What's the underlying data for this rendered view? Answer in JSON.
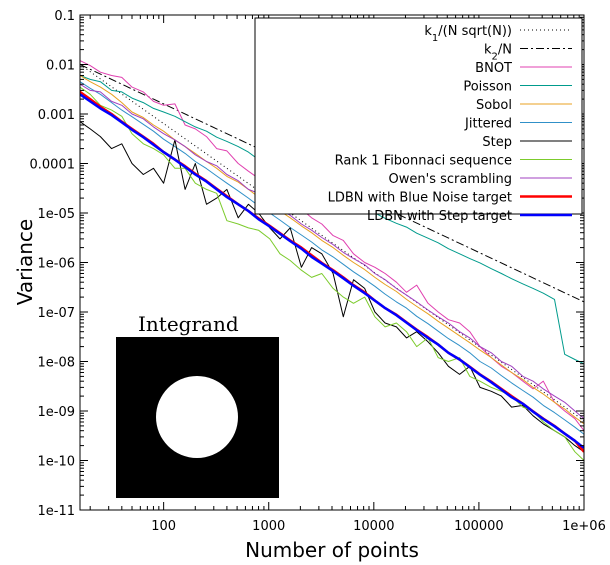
{
  "chart_data": {
    "type": "line",
    "title": "",
    "xlabel": "Number of points",
    "ylabel": "Variance",
    "x_scale": "log",
    "y_scale": "log",
    "xlim": [
      16,
      1000000
    ],
    "ylim": [
      1e-11,
      0.1
    ],
    "x_ticks": [
      {
        "value": 100,
        "label": "100"
      },
      {
        "value": 1000,
        "label": "1000"
      },
      {
        "value": 10000,
        "label": "10000"
      },
      {
        "value": 100000,
        "label": "100000"
      },
      {
        "value": 1000000,
        "label": "1e+06"
      }
    ],
    "y_ticks": [
      {
        "value": 1e-11,
        "label": "1e-11"
      },
      {
        "value": 1e-10,
        "label": "1e-10"
      },
      {
        "value": 1e-09,
        "label": "1e-09"
      },
      {
        "value": 1e-08,
        "label": "1e-08"
      },
      {
        "value": 1e-07,
        "label": "1e-07"
      },
      {
        "value": 1e-06,
        "label": "1e-06"
      },
      {
        "value": 1e-05,
        "label": "1e-05"
      },
      {
        "value": 0.0001,
        "label": "0.0001"
      },
      {
        "value": 0.001,
        "label": "0.001"
      },
      {
        "value": 0.01,
        "label": "0.01"
      },
      {
        "value": 0.1,
        "label": "0.1"
      }
    ],
    "grid": false,
    "legend_position": "top-right",
    "series": [
      {
        "name": "k1/(N sqrt(N))",
        "legend_main": "k",
        "legend_sub": "1",
        "legend_rest": "/(N sqrt(N))",
        "color": "#000000",
        "dash": "1,3",
        "width": 1,
        "x": [
          16,
          1000000
        ],
        "y": [
          0.01,
          6.4e-10
        ]
      },
      {
        "name": "k2/N",
        "legend_main": "k",
        "legend_sub": "2",
        "legend_rest": "/N",
        "color": "#000000",
        "dash": "8,3,2,3",
        "width": 1,
        "x": [
          16,
          1000000
        ],
        "y": [
          0.01,
          1.6e-07
        ]
      },
      {
        "name": "BNOT",
        "color": "#e040b0",
        "dash": "",
        "width": 1,
        "x": [
          16,
          20,
          25,
          32,
          40,
          50,
          64,
          80,
          100,
          128,
          160,
          200,
          256,
          320,
          400,
          512,
          640,
          800,
          1024,
          1280,
          1600,
          2048,
          2560,
          3200,
          4096,
          5120,
          6400,
          8192,
          10240,
          12800,
          16384,
          20480,
          25600,
          32768,
          40960,
          51200,
          65536,
          81920,
          102400,
          131072,
          163840,
          204800,
          262144,
          327680,
          409600,
          524288,
          655360,
          819200,
          1000000
        ],
        "y": [
          0.012,
          0.0095,
          0.007,
          0.006,
          0.0055,
          0.0035,
          0.0028,
          0.0018,
          0.0015,
          0.0016,
          0.0006,
          0.0005,
          0.00035,
          0.0002,
          0.00018,
          0.0001,
          7e-05,
          5e-05,
          3e-05,
          2.5e-05,
          1.6e-05,
          1.2e-05,
          8e-06,
          6e-06,
          3.5e-06,
          2.8e-06,
          1.5e-06,
          1e-06,
          8e-07,
          6e-07,
          4e-07,
          2.5e-07,
          3.5e-07,
          1.5e-07,
          1e-07,
          7e-08,
          6e-08,
          4e-08,
          2e-08,
          1.2e-08,
          8e-09,
          6e-09,
          4e-09,
          2.8e-09,
          4e-09,
          1.5e-09,
          1e-09,
          7e-10,
          4e-10
        ]
      },
      {
        "name": "Poisson",
        "color": "#009b8c",
        "dash": "",
        "width": 1,
        "x": [
          16,
          20,
          25,
          32,
          40,
          50,
          64,
          80,
          100,
          128,
          160,
          200,
          256,
          320,
          400,
          512,
          640,
          800,
          1024,
          1280,
          1600,
          2048,
          2560,
          3200,
          4096,
          5120,
          6400,
          8192,
          10240,
          12800,
          16384,
          20480,
          25600,
          32768,
          40960,
          51200,
          65536,
          81920,
          102400,
          131072,
          163840,
          204800,
          262144,
          327680,
          409600,
          524288,
          655360,
          819200,
          1000000
        ],
        "y": [
          0.006,
          0.005,
          0.0045,
          0.003,
          0.0028,
          0.0021,
          0.0017,
          0.0013,
          0.0011,
          0.0009,
          0.0007,
          0.00055,
          0.00045,
          0.00034,
          0.00028,
          0.00022,
          0.00017,
          0.00012,
          0.0001,
          8e-05,
          6.5e-05,
          5.2e-05,
          4.2e-05,
          3.2e-05,
          2.5e-05,
          2e-05,
          1.6e-05,
          1.2e-05,
          1e-05,
          7.8e-06,
          6.2e-06,
          5.2e-06,
          3.9e-06,
          3.1e-06,
          2.5e-06,
          1.9e-06,
          1.5e-06,
          1.2e-06,
          9.8e-07,
          7.5e-07,
          6e-07,
          4.7e-07,
          3.7e-07,
          3e-07,
          2.4e-07,
          1.8e-07,
          1.4e-08,
          1.1e-08,
          9e-09
        ]
      },
      {
        "name": "Sobol",
        "color": "#e8a020",
        "dash": "",
        "width": 1,
        "x": [
          16,
          20,
          25,
          32,
          40,
          50,
          64,
          80,
          100,
          128,
          160,
          200,
          256,
          320,
          400,
          512,
          640,
          800,
          1024,
          1280,
          1600,
          2048,
          2560,
          3200,
          4096,
          5120,
          6400,
          8192,
          10240,
          12800,
          16384,
          20480,
          25600,
          32768,
          40960,
          51200,
          65536,
          81920,
          102400,
          131072,
          163840,
          204800,
          262144,
          327680,
          409600,
          524288,
          655360,
          819200,
          1000000
        ],
        "y": [
          0.006,
          0.0045,
          0.0035,
          0.0025,
          0.0017,
          0.0011,
          0.00085,
          0.0006,
          0.00045,
          0.0003,
          0.00022,
          0.00016,
          0.00011,
          8e-05,
          5.5e-05,
          4.2e-05,
          3e-05,
          2.1e-05,
          1.5e-05,
          1.1e-05,
          8e-06,
          5.5e-06,
          4e-06,
          2.8e-06,
          2e-06,
          1.4e-06,
          1e-06,
          7.2e-07,
          5e-07,
          3.6e-07,
          2.6e-07,
          1.8e-07,
          1.3e-07,
          9.2e-08,
          6.5e-08,
          4.7e-08,
          3.3e-08,
          2.4e-08,
          1.7e-08,
          1.2e-08,
          8.5e-09,
          6e-09,
          4.3e-09,
          3e-09,
          2.2e-09,
          1.5e-09,
          1.1e-09,
          7.5e-10,
          5.5e-10
        ]
      },
      {
        "name": "Jittered",
        "color": "#3090c8",
        "dash": "",
        "width": 1,
        "x": [
          16,
          20,
          25,
          32,
          40,
          50,
          64,
          80,
          100,
          128,
          160,
          200,
          256,
          320,
          400,
          512,
          640,
          800,
          1024,
          1280,
          1600,
          2048,
          2560,
          3200,
          4096,
          5120,
          6400,
          8192,
          10240,
          12800,
          16384,
          20480,
          25600,
          32768,
          40960,
          51200,
          65536,
          81920,
          102400,
          131072,
          163840,
          204800,
          262144,
          327680,
          409600,
          524288,
          655360,
          819200,
          1000000
        ],
        "y": [
          0.0045,
          0.0033,
          0.0025,
          0.0017,
          0.0012,
          0.00088,
          0.00062,
          0.00045,
          0.00031,
          0.00022,
          0.00016,
          0.00011,
          7.9e-05,
          5.6e-05,
          4e-05,
          2.8e-05,
          2e-05,
          1.4e-05,
          1e-05,
          7.2e-06,
          5.1e-06,
          3.6e-06,
          2.6e-06,
          1.8e-06,
          1.3e-06,
          9.2e-07,
          6.5e-07,
          4.6e-07,
          3.3e-07,
          2.3e-07,
          1.6e-07,
          1.2e-07,
          8.2e-08,
          5.8e-08,
          4.1e-08,
          2.9e-08,
          2.1e-08,
          1.5e-08,
          1e-08,
          7.4e-09,
          5.2e-09,
          3.7e-09,
          2.6e-09,
          1.9e-09,
          1.3e-09,
          9.3e-10,
          6.6e-10,
          4.7e-10,
          3.4e-10
        ]
      },
      {
        "name": "Step",
        "color": "#000000",
        "dash": "",
        "width": 1,
        "x": [
          16,
          20,
          25,
          32,
          40,
          50,
          64,
          80,
          100,
          128,
          160,
          200,
          256,
          320,
          400,
          512,
          640,
          800,
          1024,
          1280,
          1600,
          2048,
          2560,
          3200,
          4096,
          5120,
          6400,
          8192,
          10240,
          12800,
          16384,
          20480,
          25600,
          32768,
          40960,
          51200,
          65536,
          81920,
          102400,
          131072,
          163840,
          204800,
          262144,
          327680,
          409600,
          524288,
          655360,
          819200,
          1000000
        ],
        "y": [
          0.0007,
          0.0005,
          0.00035,
          0.0002,
          0.00025,
          0.0001,
          6e-05,
          8e-05,
          4e-05,
          0.0003,
          3e-05,
          0.0001,
          1.5e-05,
          2e-05,
          3e-05,
          8e-06,
          1.5e-05,
          1e-05,
          5e-06,
          3e-06,
          5e-06,
          8e-07,
          2e-06,
          1.5e-06,
          6e-07,
          8e-08,
          4.5e-07,
          3e-07,
          1e-07,
          6e-08,
          5e-08,
          3e-08,
          4e-08,
          2.5e-08,
          1.5e-08,
          8e-09,
          5.5e-09,
          8e-09,
          3e-09,
          2.5e-09,
          2e-09,
          1.2e-09,
          1.3e-09,
          8e-10,
          5.5e-10,
          4e-10,
          3e-10,
          2e-10,
          1.5e-10
        ]
      },
      {
        "name": "Rank 1 Fibonnaci sequence",
        "color": "#7ccb2c",
        "dash": "",
        "width": 1,
        "x": [
          16,
          20,
          25,
          32,
          40,
          50,
          64,
          80,
          100,
          128,
          160,
          200,
          256,
          320,
          400,
          512,
          640,
          800,
          1024,
          1280,
          1600,
          2048,
          2560,
          3200,
          4096,
          5120,
          6400,
          8192,
          10240,
          12800,
          16384,
          20480,
          25600,
          32768,
          40960,
          51200,
          65536,
          81920,
          102400,
          131072,
          163840,
          204800,
          262144,
          327680,
          409600,
          524288,
          655360,
          819200,
          1000000
        ],
        "y": [
          0.0035,
          0.0025,
          0.0015,
          0.0012,
          0.0009,
          0.0004,
          0.00025,
          0.0002,
          0.00015,
          8e-05,
          8e-05,
          4e-05,
          3e-05,
          2.5e-05,
          7e-06,
          6e-06,
          5e-06,
          4.5e-06,
          3e-06,
          1.5e-06,
          1.1e-06,
          7e-07,
          5e-07,
          6e-07,
          3e-07,
          2e-07,
          1.5e-07,
          2e-07,
          8e-08,
          5e-08,
          6e-08,
          4e-08,
          2e-08,
          3e-08,
          1.2e-08,
          1e-08,
          1.2e-08,
          5e-09,
          4e-09,
          3e-09,
          2.5e-09,
          2e-09,
          1.2e-09,
          1e-09,
          6e-10,
          4e-10,
          3e-10,
          1.5e-10,
          1e-10
        ]
      },
      {
        "name": "Owen's scrambling",
        "color": "#a040c0",
        "dash": "",
        "width": 1,
        "x": [
          16,
          20,
          25,
          32,
          40,
          50,
          64,
          80,
          100,
          128,
          160,
          200,
          256,
          320,
          400,
          512,
          640,
          800,
          1024,
          1280,
          1600,
          2048,
          2560,
          3200,
          4096,
          5120,
          6400,
          8192,
          10240,
          12800,
          16384,
          20480,
          25600,
          32768,
          40960,
          51200,
          65536,
          81920,
          102400,
          131072,
          163840,
          204800,
          262144,
          327680,
          409600,
          524288,
          655360,
          819200,
          1000000
        ],
        "y": [
          0.004,
          0.003,
          0.0028,
          0.0018,
          0.0015,
          0.001,
          0.0008,
          0.00055,
          0.0004,
          0.0003,
          0.00022,
          0.00015,
          0.00011,
          9e-05,
          6e-05,
          4.5e-05,
          3e-05,
          2.5e-05,
          1.8e-05,
          1.2e-05,
          9e-06,
          6e-06,
          4.5e-06,
          3.2e-06,
          2.3e-06,
          1.6e-06,
          1.2e-06,
          9e-07,
          6e-07,
          4.5e-07,
          3e-07,
          2.2e-07,
          1.6e-07,
          1.1e-07,
          8e-08,
          6e-08,
          4e-08,
          3e-08,
          2e-08,
          1.5e-08,
          1e-08,
          8e-09,
          5e-09,
          4e-09,
          2.8e-09,
          2e-09,
          1.5e-09,
          1e-09,
          7e-10
        ]
      },
      {
        "name": "LDBN with Blue Noise target",
        "color": "#ff0000",
        "dash": "",
        "width": 2.5,
        "x": [
          16,
          20,
          25,
          32,
          40,
          50,
          64,
          80,
          100,
          128,
          160,
          200,
          256,
          320,
          400,
          512,
          640,
          800,
          1024,
          1280,
          1600,
          2048,
          2560,
          3200,
          4096,
          5120,
          6400,
          8192,
          10240,
          12800,
          16384,
          20480,
          25600,
          32768,
          40960,
          51200,
          65536,
          81920,
          102400,
          131072,
          163840,
          204800,
          262144,
          327680,
          409600,
          524288,
          655360,
          819200,
          1000000
        ],
        "y": [
          0.0028,
          0.002,
          0.0014,
          0.001,
          0.0007,
          0.0005,
          0.00035,
          0.00025,
          0.00017,
          0.00012,
          8.8e-05,
          6.2e-05,
          4.4e-05,
          3.1e-05,
          2.2e-05,
          1.5e-05,
          1.1e-05,
          7.8e-06,
          5.5e-06,
          3.9e-06,
          2.8e-06,
          2e-06,
          1.4e-06,
          9.8e-07,
          7e-07,
          5e-07,
          3.5e-07,
          2.5e-07,
          1.7e-07,
          1.2e-07,
          8.8e-08,
          6.2e-08,
          4.4e-08,
          3.1e-08,
          2.2e-08,
          1.5e-08,
          1.1e-08,
          7.8e-09,
          5.5e-09,
          3.9e-09,
          2.8e-09,
          2e-09,
          1.4e-09,
          9.8e-10,
          7e-10,
          5e-10,
          3.5e-10,
          2.5e-10,
          1.5e-10
        ]
      },
      {
        "name": "LDBN with Step target",
        "color": "#0000ff",
        "dash": "",
        "width": 2.5,
        "x": [
          16,
          20,
          25,
          32,
          40,
          50,
          64,
          80,
          100,
          128,
          160,
          200,
          256,
          320,
          400,
          512,
          640,
          800,
          1024,
          1280,
          1600,
          2048,
          2560,
          3200,
          4096,
          5120,
          6400,
          8192,
          10240,
          12800,
          16384,
          20480,
          25600,
          32768,
          40960,
          51200,
          65536,
          81920,
          102400,
          131072,
          163840,
          204800,
          262144,
          327680,
          409600,
          524288,
          655360,
          819200,
          1000000
        ],
        "y": [
          0.0025,
          0.0018,
          0.0013,
          0.00095,
          0.00068,
          0.00048,
          0.00034,
          0.00024,
          0.00017,
          0.00012,
          8.5e-05,
          6e-05,
          4.3e-05,
          3e-05,
          2.1e-05,
          1.5e-05,
          1.1e-05,
          7.5e-06,
          5.3e-06,
          3.8e-06,
          2.7e-06,
          1.9e-06,
          1.3e-06,
          9.5e-07,
          6.7e-07,
          4.8e-07,
          3.4e-07,
          2.4e-07,
          1.7e-07,
          1.2e-07,
          8.6e-08,
          6.1e-08,
          4.3e-08,
          3e-08,
          2.2e-08,
          1.5e-08,
          1.1e-08,
          7.7e-09,
          5.4e-09,
          3.8e-09,
          2.7e-09,
          1.9e-09,
          1.4e-09,
          9.7e-10,
          6.9e-10,
          4.9e-10,
          3.5e-10,
          2.5e-10,
          1.8e-10
        ]
      }
    ],
    "inset": {
      "title": "Integrand",
      "background_color": "#000000",
      "disk_color": "#ffffff"
    }
  }
}
